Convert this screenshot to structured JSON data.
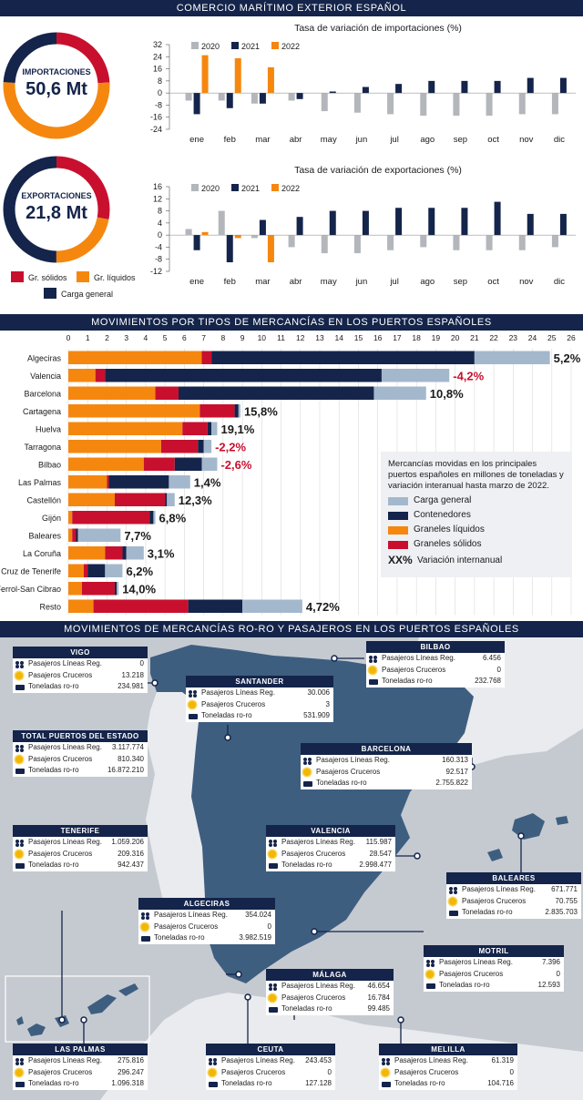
{
  "header": {
    "title": "COMERCIO MARÍTIMO EXTERIOR ESPAÑOL"
  },
  "donuts": [
    {
      "label": "IMPORTACIONES",
      "value": "50,6 Mt",
      "shares": [
        24,
        52,
        24
      ]
    },
    {
      "label": "EXPORTACIONES",
      "value": "21,8 Mt",
      "shares": [
        28,
        22,
        50
      ]
    }
  ],
  "donut_legend": [
    "Gr. sólidos",
    "Gr. líquidos",
    "Carga general"
  ],
  "colors": {
    "navy": "#14244a",
    "orange": "#f5870f",
    "red": "#c8102e",
    "lightblue": "#a4b8cd",
    "gray2020": "#b3b6ba",
    "sea": "#c5cad1",
    "land": "#3e5e80",
    "lightland": "#e9ebee",
    "negative": "#c8102e"
  },
  "section2": {
    "title": "MOVIMIENTOS POR TIPOS DE MERCANCÍAS EN LOS PUERTOS ESPAÑOLES",
    "legend_note": "Mercancías movidas en los principales puertos españoles en millones de toneladas y variación interanual hasta marzo de 2022.",
    "legend_items": [
      "Carga general",
      "Contenedores",
      "Graneles líquidos",
      "Graneles sólidos"
    ],
    "legend_xx": "XX%",
    "legend_xx_label": "Variación internanual"
  },
  "section3": {
    "title": "MOVIMIENTOS DE MERCANCÍAS RO-RO Y PASAJEROS EN LOS PUERTOS ESPAÑOLES",
    "row_labels": [
      "Pasajeros Líneas Reg.",
      "Pasajeros Cruceros",
      "Toneladas ro-ro"
    ],
    "ports": [
      {
        "name": "VIGO",
        "values": [
          "0",
          "13.218",
          "234.981"
        ]
      },
      {
        "name": "TOTAL PUERTOS DEL ESTADO",
        "values": [
          "3.117.774",
          "810.340",
          "16.872.210"
        ]
      },
      {
        "name": "SANTANDER",
        "values": [
          "30.006",
          "3",
          "531.909"
        ]
      },
      {
        "name": "BILBAO",
        "values": [
          "6.456",
          "0",
          "232.768"
        ]
      },
      {
        "name": "BARCELONA",
        "values": [
          "160.313",
          "92.517",
          "2.755.822"
        ]
      },
      {
        "name": "TENERIFE",
        "values": [
          "1.059.206",
          "209.316",
          "942.437"
        ]
      },
      {
        "name": "VALENCIA",
        "values": [
          "115.987",
          "28.547",
          "2.998.477"
        ]
      },
      {
        "name": "BALEARES",
        "values": [
          "671.771",
          "70.755",
          "2.835.703"
        ]
      },
      {
        "name": "ALGECIRAS",
        "values": [
          "354.024",
          "0",
          "3.982.519"
        ]
      },
      {
        "name": "MOTRIL",
        "values": [
          "7.396",
          "0",
          "12.593"
        ]
      },
      {
        "name": "MÁLAGA",
        "values": [
          "46.654",
          "16.784",
          "99.485"
        ]
      },
      {
        "name": "LAS PALMAS",
        "values": [
          "275.816",
          "296.247",
          "1.096.318"
        ]
      },
      {
        "name": "CEUTA",
        "values": [
          "243.453",
          "0",
          "127.128"
        ]
      },
      {
        "name": "MELILLA",
        "values": [
          "61.319",
          "0",
          "104.716"
        ]
      }
    ]
  },
  "chart_data": [
    {
      "type": "bar",
      "title": "Tasa de variación de importaciones (%)",
      "categories": [
        "ene",
        "feb",
        "mar",
        "abr",
        "may",
        "jun",
        "jul",
        "ago",
        "sep",
        "oct",
        "nov",
        "dic"
      ],
      "ylim": [
        -24,
        32
      ],
      "yticks": [
        -24,
        -16,
        -8,
        0,
        8,
        16,
        24,
        32
      ],
      "yticklabels": [
        "-24",
        "-16",
        "-8",
        "0",
        "8",
        "16",
        "24",
        "32"
      ],
      "series": [
        {
          "name": "2020",
          "values": [
            -5,
            -5,
            -7,
            -5,
            -12,
            -13,
            -14,
            -15,
            -15,
            -15,
            -14,
            -14
          ]
        },
        {
          "name": "2021",
          "values": [
            -14,
            -10,
            -7,
            -4,
            1,
            4,
            6,
            8,
            8,
            8,
            10,
            10
          ]
        },
        {
          "name": "2022",
          "values": [
            25,
            23,
            17,
            null,
            null,
            null,
            null,
            null,
            null,
            null,
            null,
            null
          ]
        }
      ]
    },
    {
      "type": "bar",
      "title": "Tasa de variación de exportaciones (%)",
      "categories": [
        "ene",
        "feb",
        "mar",
        "abr",
        "may",
        "jun",
        "jul",
        "ago",
        "sep",
        "oct",
        "nov",
        "dic"
      ],
      "ylim": [
        -12,
        16
      ],
      "yticks": [
        -12,
        -8,
        -4,
        0,
        4,
        8,
        12,
        16
      ],
      "yticklabels": [
        "-12",
        "-8",
        "-4",
        "0",
        "4",
        "8",
        "12",
        "16"
      ],
      "series": [
        {
          "name": "2020",
          "values": [
            2,
            8,
            -1,
            -4,
            -6,
            -6,
            -5,
            -4,
            -5,
            -5,
            -5,
            -4
          ]
        },
        {
          "name": "2021",
          "values": [
            -5,
            -9,
            5,
            6,
            8,
            8,
            9,
            9,
            9,
            11,
            7,
            7
          ]
        },
        {
          "name": "2022",
          "values": [
            1,
            -1,
            -9,
            null,
            null,
            null,
            null,
            null,
            null,
            null,
            null,
            null
          ]
        }
      ]
    },
    {
      "type": "bar",
      "orientation": "horizontal",
      "stacked": true,
      "xlim": [
        0,
        26
      ],
      "xticks": [
        0,
        1,
        2,
        3,
        4,
        5,
        6,
        7,
        8,
        9,
        10,
        11,
        12,
        13,
        14,
        15,
        16,
        17,
        18,
        19,
        20,
        21,
        22,
        23,
        24,
        25,
        26
      ],
      "categories": [
        "Algeciras",
        "Valencia",
        "Barcelona",
        "Cartagena",
        "Huelva",
        "Tarragona",
        "Bilbao",
        "Las Palmas",
        "Castellón",
        "Gijón",
        "Baleares",
        "La Coruña",
        "a Cruz de Tenerife",
        "Ferrol-San Cibrao",
        "Resto"
      ],
      "series": [
        {
          "name": "Graneles líquidos",
          "values": [
            6.9,
            1.4,
            4.5,
            6.8,
            5.9,
            4.8,
            3.9,
            2.0,
            2.4,
            0.2,
            0.2,
            1.9,
            0.8,
            0.7,
            1.3
          ]
        },
        {
          "name": "Graneles sólidos",
          "values": [
            0.5,
            0.5,
            1.2,
            1.8,
            1.3,
            1.9,
            1.6,
            0.1,
            2.6,
            4.0,
            0.2,
            0.9,
            0.2,
            1.7,
            4.9
          ]
        },
        {
          "name": "Contenedores",
          "values": [
            13.6,
            14.3,
            10.1,
            0.2,
            0.2,
            0.3,
            1.4,
            3.1,
            0.1,
            0.2,
            0.1,
            0.2,
            0.9,
            0.1,
            2.8
          ]
        },
        {
          "name": "Carga general",
          "values": [
            3.9,
            3.5,
            2.7,
            0.1,
            0.3,
            0.4,
            0.8,
            1.1,
            0.4,
            0.1,
            2.2,
            0.9,
            0.9,
            0.1,
            3.1
          ]
        }
      ],
      "annotations": [
        "5,2%",
        "-4,2%",
        "10,8%",
        "15,8%",
        "19,1%",
        "-2,2%",
        "-2,6%",
        "1,4%",
        "12,3%",
        "6,8%",
        "7,7%",
        "3,1%",
        "6,2%",
        "14,0%",
        "4,72%"
      ]
    }
  ]
}
